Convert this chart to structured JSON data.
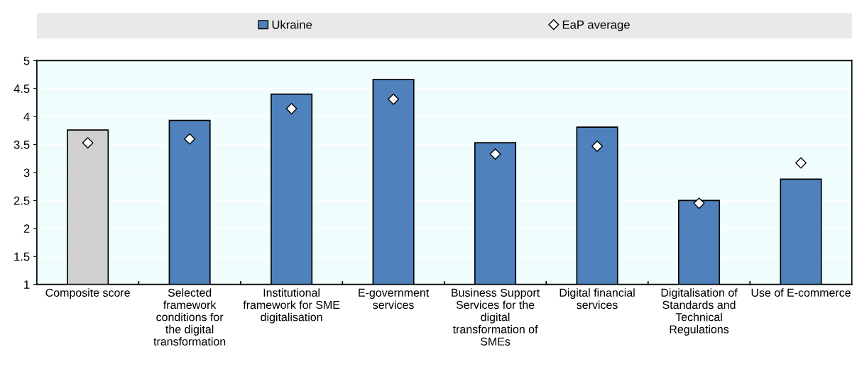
{
  "chart_data": {
    "type": "bar",
    "categories": [
      "Composite score",
      "Selected framework conditions for the digital transformation",
      "Institutional framework for SME digitalisation",
      "E-government services",
      "Business Support Services for the digital transformation of SMEs",
      "Digital financial services",
      "Digitalisation of Standards and Technical Regulations",
      "Use of E-commerce"
    ],
    "series": [
      {
        "name": "Ukraine",
        "color": "#4f81bd",
        "colors": [
          "#d0d0d0",
          "#4f81bd",
          "#4f81bd",
          "#4f81bd",
          "#4f81bd",
          "#4f81bd",
          "#4f81bd",
          "#4f81bd"
        ],
        "values": [
          3.76,
          3.93,
          4.4,
          4.66,
          3.53,
          3.81,
          2.5,
          2.88
        ]
      },
      {
        "name": "EaP average",
        "type": "scatter",
        "color": "#ffffff",
        "values": [
          3.53,
          3.6,
          4.14,
          4.31,
          3.33,
          3.47,
          2.45,
          3.17
        ]
      }
    ],
    "ylim": [
      1,
      5
    ],
    "yticks": [
      1,
      1.5,
      2,
      2.5,
      3,
      3.5,
      4,
      4.5,
      5
    ],
    "grid": "y",
    "legend": "top",
    "marker": "diamond"
  }
}
